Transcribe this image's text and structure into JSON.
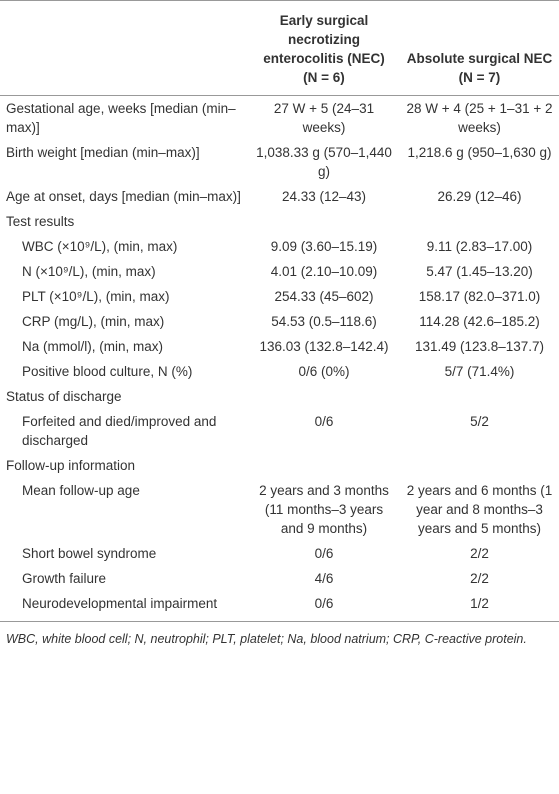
{
  "table": {
    "header": [
      {
        "name": "Early surgical necrotizing enterocolitis (NEC)",
        "n": "(N = 6)"
      },
      {
        "name": "Absolute surgical NEC",
        "n": "(N = 7)"
      }
    ],
    "rows": [
      [
        "Gestational age, weeks [median (min–max)]",
        "27 W + 5 (24–31 weeks)",
        "28 W + 4 (25 + 1–31 + 2 weeks)"
      ],
      [
        "Birth weight [median (min–max)]",
        "1,038.33 g (570–1,440 g)",
        "1,218.6 g (950–1,630 g)"
      ],
      [
        "Age at onset, days [median (min–max)]",
        "24.33 (12–43)",
        "26.29 (12–46)"
      ]
    ],
    "sections": [
      {
        "title": "Test results",
        "rows": [
          [
            "WBC (×10⁹/L), (min, max)",
            "9.09 (3.60–15.19)",
            "9.11 (2.83–17.00)"
          ],
          [
            "N (×10⁹/L), (min, max)",
            "4.01 (2.10–10.09)",
            "5.47 (1.45–13.20)"
          ],
          [
            "PLT (×10⁹/L), (min, max)",
            "254.33 (45–602)",
            "158.17 (82.0–371.0)"
          ],
          [
            "CRP (mg/L), (min, max)",
            "54.53 (0.5–118.6)",
            "114.28 (42.6–185.2)"
          ],
          [
            "Na (mmol/l), (min, max)",
            "136.03 (132.8–142.4)",
            "131.49 (123.8–137.7)"
          ],
          [
            "Positive blood culture, N (%)",
            "0/6 (0%)",
            "5/7 (71.4%)"
          ]
        ]
      },
      {
        "title": "Status of discharge",
        "rows": [
          [
            "Forfeited and died/improved and discharged",
            "0/6",
            "5/2"
          ]
        ]
      },
      {
        "title": "Follow-up information",
        "rows": [
          [
            "Mean follow-up age",
            "2 years and 3 months (11 months–3 years and 9 months)",
            "2 years and 6 months (1 year and 8 months–3 years and 5 months)"
          ],
          [
            "Short bowel syndrome",
            "0/6",
            "2/2"
          ],
          [
            "Growth failure",
            "4/6",
            "2/2"
          ],
          [
            "Neurodevelopmental impairment",
            "0/6",
            "1/2"
          ]
        ]
      }
    ],
    "footnote": "WBC, white blood cell; N, neutrophil; PLT, platelet; Na, blood natrium; CRP, C-reactive protein."
  }
}
